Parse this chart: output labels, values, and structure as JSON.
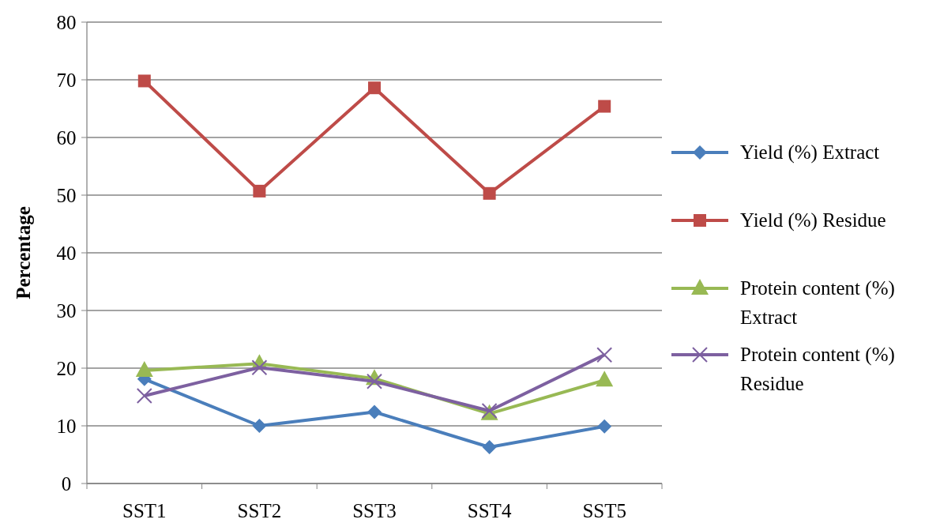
{
  "chart_data": {
    "type": "line",
    "ylabel": "Percentage",
    "categories": [
      "SST1",
      "SST2",
      "SST3",
      "SST4",
      "SST5"
    ],
    "ylim": [
      0,
      80
    ],
    "yticks": [
      0,
      10,
      20,
      30,
      40,
      50,
      60,
      70,
      80
    ],
    "grid": "y",
    "legend": "right",
    "line_style": "solid",
    "series": [
      {
        "name": "Yield (%) Extract",
        "color": "#4a7ebb",
        "marker": "diamond",
        "values": [
          18.1,
          10.0,
          12.4,
          6.3,
          9.9
        ]
      },
      {
        "name": "Yield (%) Residue",
        "color": "#be4b48",
        "marker": "square",
        "values": [
          69.8,
          50.7,
          68.6,
          50.3,
          65.4
        ]
      },
      {
        "name": "Protein content (%) Extract",
        "color": "#98b954",
        "marker": "triangle",
        "values": [
          19.6,
          20.8,
          18.2,
          12.1,
          17.9
        ]
      },
      {
        "name": "Protein content (%) Residue",
        "color": "#7d60a0",
        "marker": "cross",
        "values": [
          15.2,
          20.1,
          17.7,
          12.6,
          22.3
        ]
      }
    ]
  }
}
